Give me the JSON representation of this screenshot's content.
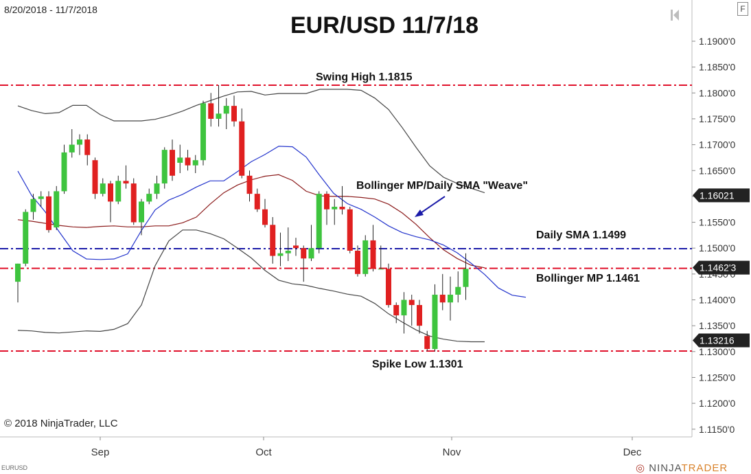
{
  "header": {
    "date_range": "8/20/2018 - 11/7/2018",
    "title": "EUR/USD 11/7/18",
    "f_button": "F"
  },
  "footer": {
    "copyright": "© 2018 NinjaTrader, LLC",
    "symbol": "EURUSD",
    "brand_prefix": "NINJA",
    "brand_suffix": "TRADER"
  },
  "annotations": {
    "swing_high": "Swing High 1.1815",
    "weave": "Bollinger MP/Daily SMA \"Weave\"",
    "daily_sma": "Daily SMA 1.1499",
    "bollinger_mp": "Bollinger MP 1.1461",
    "spike_low": "Spike Low 1.1301"
  },
  "colors": {
    "up": "#3ec43e",
    "down": "#e02020",
    "bollinger_band": "#444444",
    "bollinger_mp": "#8b1a1a",
    "sma": "#2233cc",
    "red_line": "#e0102a",
    "blue_line": "#1a1aa8"
  },
  "chart_data": {
    "type": "candlestick",
    "title": "EUR/USD 11/7/18",
    "ylim": [
      1.1135,
      1.1955
    ],
    "y_ticks": [
      "1.1900'0",
      "1.1850'0",
      "1.1800'0",
      "1.1750'0",
      "1.1700'0",
      "1.1650'0",
      "1.1600'0",
      "1.1550'0",
      "1.1500'0",
      "1.1450'0",
      "1.1400'0",
      "1.1350'0",
      "1.1300'0",
      "1.1250'0",
      "1.1200'0",
      "1.1150'0"
    ],
    "x_ticks": [
      "Sep",
      "Oct",
      "Nov",
      "Dec"
    ],
    "price_tags": [
      "1.16021",
      "1.1462'3",
      "1.13216"
    ],
    "horizontal_lines": [
      {
        "label": "Swing High",
        "value": 1.1815,
        "style": "red-dashdot"
      },
      {
        "label": "Daily SMA",
        "value": 1.1499,
        "style": "blue-dashdot"
      },
      {
        "label": "Bollinger MP",
        "value": 1.1461,
        "style": "red-dashdot"
      },
      {
        "label": "Spike Low",
        "value": 1.1301,
        "style": "red-dashdot"
      }
    ],
    "candles": [
      [
        1.1435,
        1.147,
        1.147,
        1.1395
      ],
      [
        1.147,
        1.157,
        1.1575,
        1.1465
      ],
      [
        1.157,
        1.1595,
        1.1605,
        1.1555
      ],
      [
        1.1595,
        1.16,
        1.161,
        1.158
      ],
      [
        1.16,
        1.1535,
        1.161,
        1.153
      ],
      [
        1.154,
        1.161,
        1.162,
        1.1535
      ],
      [
        1.161,
        1.1685,
        1.17,
        1.1605
      ],
      [
        1.1685,
        1.17,
        1.173,
        1.1675
      ],
      [
        1.17,
        1.171,
        1.172,
        1.168
      ],
      [
        1.171,
        1.168,
        1.172,
        1.166
      ],
      [
        1.167,
        1.1605,
        1.1675,
        1.1595
      ],
      [
        1.1605,
        1.1625,
        1.1635,
        1.16
      ],
      [
        1.1625,
        1.159,
        1.163,
        1.155
      ],
      [
        1.159,
        1.163,
        1.164,
        1.1585
      ],
      [
        1.163,
        1.1625,
        1.166,
        1.1615
      ],
      [
        1.1625,
        1.155,
        1.1635,
        1.1545
      ],
      [
        1.155,
        1.159,
        1.1595,
        1.1525
      ],
      [
        1.159,
        1.1605,
        1.1615,
        1.1585
      ],
      [
        1.1605,
        1.1625,
        1.164,
        1.1595
      ],
      [
        1.1625,
        1.169,
        1.1695,
        1.1615
      ],
      [
        1.169,
        1.164,
        1.171,
        1.163
      ],
      [
        1.1665,
        1.1675,
        1.17,
        1.1645
      ],
      [
        1.1675,
        1.166,
        1.169,
        1.165
      ],
      [
        1.166,
        1.167,
        1.168,
        1.1645
      ],
      [
        1.167,
        1.178,
        1.1785,
        1.166
      ],
      [
        1.178,
        1.175,
        1.18,
        1.1735
      ],
      [
        1.175,
        1.176,
        1.1815,
        1.1735
      ],
      [
        1.176,
        1.1775,
        1.179,
        1.173
      ],
      [
        1.1775,
        1.1745,
        1.1795,
        1.1735
      ],
      [
        1.1745,
        1.164,
        1.177,
        1.1635
      ],
      [
        1.164,
        1.1605,
        1.165,
        1.159
      ],
      [
        1.1605,
        1.1575,
        1.1615,
        1.157
      ],
      [
        1.1575,
        1.1545,
        1.1595,
        1.154
      ],
      [
        1.1545,
        1.1485,
        1.156,
        1.147
      ],
      [
        1.1485,
        1.149,
        1.153,
        1.1465
      ],
      [
        1.149,
        1.1495,
        1.154,
        1.1475
      ],
      [
        1.1505,
        1.15,
        1.152,
        1.1485
      ],
      [
        1.15,
        1.148,
        1.1505,
        1.1435
      ],
      [
        1.148,
        1.15,
        1.1545,
        1.1475
      ],
      [
        1.15,
        1.1605,
        1.161,
        1.149
      ],
      [
        1.1605,
        1.1575,
        1.161,
        1.1545
      ],
      [
        1.1575,
        1.158,
        1.1595,
        1.1545
      ],
      [
        1.158,
        1.1575,
        1.162,
        1.1565
      ],
      [
        1.1575,
        1.1495,
        1.158,
        1.149
      ],
      [
        1.1495,
        1.145,
        1.1505,
        1.1445
      ],
      [
        1.145,
        1.1515,
        1.1525,
        1.1445
      ],
      [
        1.1515,
        1.146,
        1.1545,
        1.1455
      ],
      [
        1.146,
        1.146,
        1.1505,
        1.146
      ],
      [
        1.146,
        1.139,
        1.147,
        1.1385
      ],
      [
        1.139,
        1.137,
        1.1395,
        1.1355
      ],
      [
        1.137,
        1.14,
        1.1415,
        1.1335
      ],
      [
        1.14,
        1.139,
        1.141,
        1.135
      ],
      [
        1.139,
        1.135,
        1.14,
        1.1335
      ],
      [
        1.133,
        1.1305,
        1.134,
        1.1301
      ],
      [
        1.1305,
        1.141,
        1.143,
        1.13
      ],
      [
        1.141,
        1.1395,
        1.145,
        1.138
      ],
      [
        1.1395,
        1.141,
        1.1445,
        1.136
      ],
      [
        1.141,
        1.1425,
        1.1455,
        1.1395
      ],
      [
        1.1425,
        1.146,
        1.149,
        1.14
      ]
    ],
    "series": [
      {
        "name": "Bollinger Upper",
        "values": [
          1.1775,
          1.1766,
          1.176,
          1.1762,
          1.1776,
          1.1776,
          1.1758,
          1.1746,
          1.1746,
          1.1746,
          1.1749,
          1.1756,
          1.1765,
          1.1776,
          1.1785,
          1.1794,
          1.1802,
          1.1803,
          1.1796,
          1.1799,
          1.1799,
          1.1799,
          1.1807,
          1.1807,
          1.1807,
          1.1805,
          1.179,
          1.1768,
          1.1733,
          1.1695,
          1.1659,
          1.1637,
          1.1625,
          1.1616,
          1.1607
        ]
      },
      {
        "name": "Bollinger MP",
        "values": [
          1.1555,
          1.1552,
          1.1548,
          1.1544,
          1.1541,
          1.154,
          1.1542,
          1.1543,
          1.1541,
          1.1541,
          1.1543,
          1.1543,
          1.1549,
          1.156,
          1.1585,
          1.1607,
          1.1622,
          1.1632,
          1.1639,
          1.1642,
          1.1631,
          1.161,
          1.1601,
          1.16,
          1.16,
          1.1598,
          1.1595,
          1.1585,
          1.1568,
          1.1546,
          1.152,
          1.1497,
          1.148,
          1.1467,
          1.1462
        ]
      },
      {
        "name": "Bollinger Lower",
        "values": [
          1.1341,
          1.134,
          1.1337,
          1.1336,
          1.1338,
          1.134,
          1.1339,
          1.1343,
          1.1354,
          1.139,
          1.1466,
          1.1514,
          1.1535,
          1.1535,
          1.1528,
          1.1518,
          1.15,
          1.1481,
          1.1457,
          1.1438,
          1.1431,
          1.1428,
          1.1422,
          1.1417,
          1.1411,
          1.1407,
          1.1393,
          1.1373,
          1.1357,
          1.1342,
          1.133,
          1.1324,
          1.132,
          1.1319,
          1.1319
        ]
      },
      {
        "name": "Daily SMA",
        "values": [
          1.1649,
          1.1602,
          1.157,
          1.1532,
          1.1495,
          1.1479,
          1.1478,
          1.1479,
          1.1489,
          1.1534,
          1.1574,
          1.1593,
          1.1604,
          1.1618,
          1.163,
          1.163,
          1.1648,
          1.1667,
          1.1681,
          1.1697,
          1.1696,
          1.1676,
          1.164,
          1.1606,
          1.1586,
          1.1575,
          1.156,
          1.1543,
          1.153,
          1.1522,
          1.1516,
          1.1506,
          1.1491,
          1.1471,
          1.1449,
          1.1423,
          1.1409,
          1.1405
        ]
      }
    ]
  }
}
